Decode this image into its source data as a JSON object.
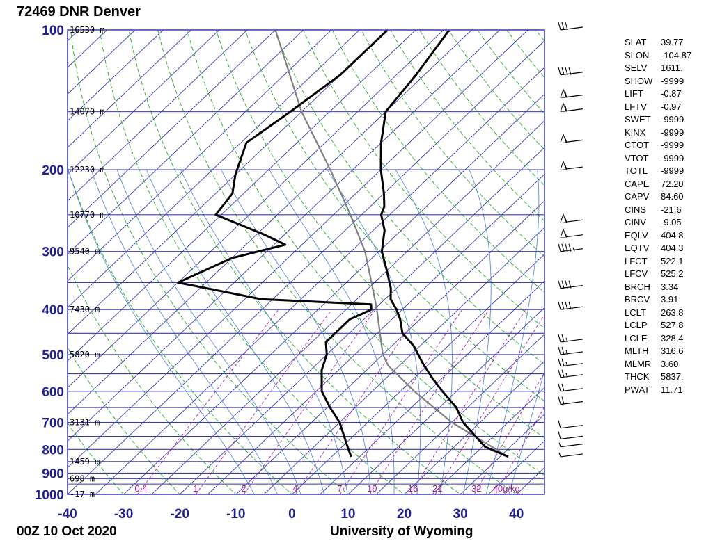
{
  "header": {
    "station": "72469 DNR Denver",
    "date": "00Z 10 Oct 2020",
    "source": "University of Wyoming"
  },
  "colors": {
    "isobar": "#3a3ab0",
    "isotherm": "#3a3ab0",
    "dry_adiabat": "#22aa22",
    "moist_adiabat": "#5a8fd0",
    "mixing_ratio": "#b020b0",
    "temperature": "#000000",
    "dewpoint": "#000000",
    "parcel": "#808080",
    "tick_text": "#1f1f8f"
  },
  "chart_data": {
    "type": "skew-t",
    "title": "72469 DNR Denver",
    "x_unit": "°C",
    "xlim": [
      -40,
      45
    ],
    "x_ticks": [
      "-40",
      "-30",
      "-20",
      "-10",
      "0",
      "10",
      "20",
      "30",
      "40"
    ],
    "plim_hpa": [
      1000,
      100
    ],
    "p_ticks": [
      "100",
      "200",
      "300",
      "400",
      "500",
      "600",
      "700",
      "800",
      "900",
      "1000"
    ],
    "height_labels": [
      {
        "p": 100,
        "label": "16530 m"
      },
      {
        "p": 150,
        "label": "14070 m"
      },
      {
        "p": 200,
        "label": "12230 m"
      },
      {
        "p": 250,
        "label": "10770 m"
      },
      {
        "p": 300,
        "label": "9540 m"
      },
      {
        "p": 400,
        "label": "7430 m"
      },
      {
        "p": 500,
        "label": "5820 m"
      },
      {
        "p": 700,
        "label": "3131 m"
      },
      {
        "p": 850,
        "label": "1459 m"
      },
      {
        "p": 925,
        "label": "698 m"
      },
      {
        "p": 1000,
        "label": "-17 m"
      }
    ],
    "mixing_ratio_labels": [
      "0.4",
      "1",
      "2",
      "4",
      "7",
      "10",
      "16",
      "21",
      "32",
      "40g/kg"
    ],
    "temperature_series": {
      "name": "Temperature",
      "points": [
        {
          "p": 830,
          "t": 31.5
        },
        {
          "p": 790,
          "t": 25.5
        },
        {
          "p": 700,
          "t": 17.0
        },
        {
          "p": 650,
          "t": 13.0
        },
        {
          "p": 600,
          "t": 7.5
        },
        {
          "p": 560,
          "t": 3.0
        },
        {
          "p": 520,
          "t": -1.5
        },
        {
          "p": 480,
          "t": -6.0
        },
        {
          "p": 450,
          "t": -10.5
        },
        {
          "p": 420,
          "t": -13.5
        },
        {
          "p": 400,
          "t": -16.0
        },
        {
          "p": 380,
          "t": -19.0
        },
        {
          "p": 360,
          "t": -21.0
        },
        {
          "p": 330,
          "t": -25.0
        },
        {
          "p": 300,
          "t": -29.5
        },
        {
          "p": 270,
          "t": -33.0
        },
        {
          "p": 250,
          "t": -36.5
        },
        {
          "p": 240,
          "t": -37.5
        },
        {
          "p": 225,
          "t": -40.0
        },
        {
          "p": 200,
          "t": -45.0
        },
        {
          "p": 175,
          "t": -50.0
        },
        {
          "p": 150,
          "t": -55.0
        },
        {
          "p": 125,
          "t": -56.5
        },
        {
          "p": 100,
          "t": -59.0
        }
      ]
    },
    "dewpoint_series": {
      "name": "Dewpoint",
      "points": [
        {
          "p": 830,
          "t": 3.5
        },
        {
          "p": 790,
          "t": 1.0
        },
        {
          "p": 700,
          "t": -5.0
        },
        {
          "p": 650,
          "t": -9.5
        },
        {
          "p": 600,
          "t": -14.0
        },
        {
          "p": 540,
          "t": -18.0
        },
        {
          "p": 500,
          "t": -20.0
        },
        {
          "p": 470,
          "t": -22.5
        },
        {
          "p": 440,
          "t": -22.5
        },
        {
          "p": 420,
          "t": -22.5
        },
        {
          "p": 400,
          "t": -20.5
        },
        {
          "p": 390,
          "t": -21.5
        },
        {
          "p": 380,
          "t": -42.0
        },
        {
          "p": 350,
          "t": -60.0
        },
        {
          "p": 310,
          "t": -55.0
        },
        {
          "p": 290,
          "t": -48.0
        },
        {
          "p": 275,
          "t": -54.0
        },
        {
          "p": 250,
          "t": -66.0
        },
        {
          "p": 225,
          "t": -67.0
        },
        {
          "p": 205,
          "t": -70.0
        },
        {
          "p": 175,
          "t": -74.0
        },
        {
          "p": 150,
          "t": -72.0
        },
        {
          "p": 125,
          "t": -70.0
        },
        {
          "p": 100,
          "t": -70.0
        }
      ]
    },
    "parcel_series": {
      "name": "Parcel",
      "points": [
        {
          "p": 830,
          "t": 31.5
        },
        {
          "p": 700,
          "t": 15.0
        },
        {
          "p": 600,
          "t": 2.5
        },
        {
          "p": 528,
          "t": -7.0
        },
        {
          "p": 500,
          "t": -10.0
        },
        {
          "p": 450,
          "t": -14.5
        },
        {
          "p": 400,
          "t": -19.5
        },
        {
          "p": 350,
          "t": -25.5
        },
        {
          "p": 300,
          "t": -32.5
        },
        {
          "p": 250,
          "t": -42.0
        },
        {
          "p": 200,
          "t": -54.0
        },
        {
          "p": 150,
          "t": -70.0
        },
        {
          "p": 100,
          "t": -90.0
        }
      ]
    },
    "wind_barbs": [
      {
        "p": 830,
        "speed_kt": 5
      },
      {
        "p": 790,
        "speed_kt": 5
      },
      {
        "p": 760,
        "speed_kt": 10
      },
      {
        "p": 720,
        "speed_kt": 10
      },
      {
        "p": 640,
        "speed_kt": 20
      },
      {
        "p": 600,
        "speed_kt": 20
      },
      {
        "p": 560,
        "speed_kt": 25
      },
      {
        "p": 530,
        "speed_kt": 25
      },
      {
        "p": 500,
        "speed_kt": 25
      },
      {
        "p": 470,
        "speed_kt": 25
      },
      {
        "p": 400,
        "speed_kt": 40
      },
      {
        "p": 360,
        "speed_kt": 40
      },
      {
        "p": 300,
        "speed_kt": 45
      },
      {
        "p": 280,
        "speed_kt": 55
      },
      {
        "p": 260,
        "speed_kt": 55
      },
      {
        "p": 200,
        "speed_kt": 55
      },
      {
        "p": 175,
        "speed_kt": 55
      },
      {
        "p": 150,
        "speed_kt": 60
      },
      {
        "p": 140,
        "speed_kt": 60
      },
      {
        "p": 125,
        "speed_kt": 40
      },
      {
        "p": 100,
        "speed_kt": 30
      }
    ]
  },
  "indices": [
    {
      "name": "SLAT",
      "value": "39.77"
    },
    {
      "name": "SLON",
      "value": "-104.87"
    },
    {
      "name": "SELV",
      "value": "1611."
    },
    {
      "name": "SHOW",
      "value": "-9999"
    },
    {
      "name": "LIFT",
      "value": "-0.87"
    },
    {
      "name": "LFTV",
      "value": "-0.97"
    },
    {
      "name": "SWET",
      "value": "-9999"
    },
    {
      "name": "KINX",
      "value": "-9999"
    },
    {
      "name": "CTOT",
      "value": "-9999"
    },
    {
      "name": "VTOT",
      "value": "-9999"
    },
    {
      "name": "TOTL",
      "value": "-9999"
    },
    {
      "name": "CAPE",
      "value": "72.20"
    },
    {
      "name": "CAPV",
      "value": "84.60"
    },
    {
      "name": "CINS",
      "value": "-21.6"
    },
    {
      "name": "CINV",
      "value": "-9.05"
    },
    {
      "name": "EQLV",
      "value": "404.8"
    },
    {
      "name": "EQTV",
      "value": "404.3"
    },
    {
      "name": "LFCT",
      "value": "522.1"
    },
    {
      "name": "LFCV",
      "value": "525.2"
    },
    {
      "name": "BRCH",
      "value": "3.34"
    },
    {
      "name": "BRCV",
      "value": "3.91"
    },
    {
      "name": "LCLT",
      "value": "263.8"
    },
    {
      "name": "LCLP",
      "value": "527.8"
    },
    {
      "name": "LCLE",
      "value": "328.4"
    },
    {
      "name": "MLTH",
      "value": "316.6"
    },
    {
      "name": "MLMR",
      "value": "3.60"
    },
    {
      "name": "THCK",
      "value": "5837."
    },
    {
      "name": "PWAT",
      "value": "11.71"
    }
  ]
}
